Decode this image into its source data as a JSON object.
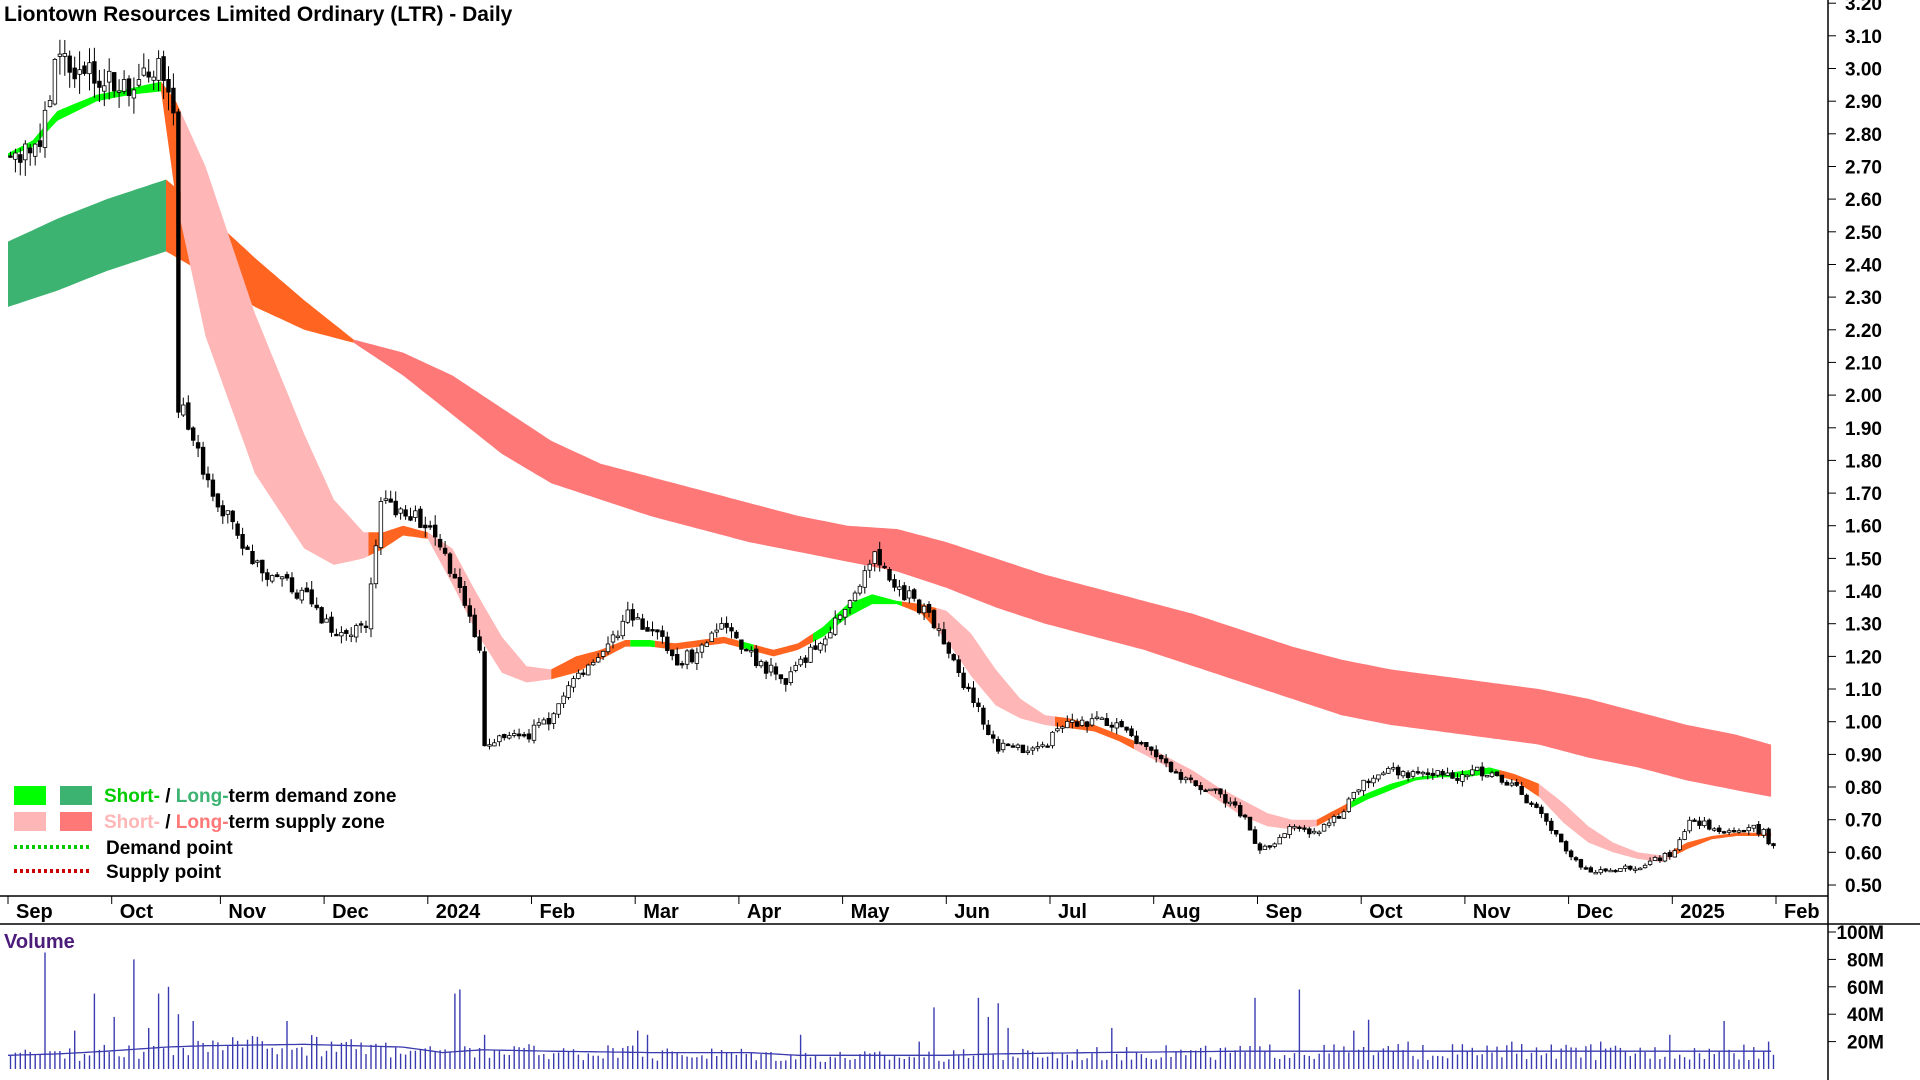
{
  "chart_data": {
    "type": "candlestick",
    "title": "Liontown Resources Limited Ordinary (LTR) - Daily",
    "price_axis": {
      "ylim": [
        0.45,
        3.2
      ],
      "ticks": [
        0.5,
        0.6,
        0.7,
        0.8,
        0.9,
        1.0,
        1.1,
        1.2,
        1.3,
        1.4,
        1.5,
        1.6,
        1.7,
        1.8,
        1.9,
        2.0,
        2.1,
        2.2,
        2.3,
        2.4,
        2.5,
        2.6,
        2.7,
        2.8,
        2.9,
        3.0,
        3.1,
        3.2
      ],
      "tick_labels": [
        "0.50",
        "0.60",
        "0.70",
        "0.80",
        "0.90",
        "1.00",
        "1.10",
        "1.20",
        "1.30",
        "1.40",
        "1.50",
        "1.60",
        "1.70",
        "1.80",
        "1.90",
        "2.00",
        "2.10",
        "2.20",
        "2.30",
        "2.40",
        "2.50",
        "2.60",
        "2.70",
        "2.80",
        "2.90",
        "3.00",
        "3.10",
        "3.20"
      ]
    },
    "x_axis": {
      "labels": [
        "Sep",
        "Oct",
        "Nov",
        "Dec",
        "2024",
        "Feb",
        "Mar",
        "Apr",
        "May",
        "Jun",
        "Jul",
        "Aug",
        "Sep",
        "Oct",
        "Nov",
        "Dec",
        "2025",
        "Feb"
      ],
      "label_index": [
        0,
        21,
        43,
        64,
        85,
        106,
        127,
        148,
        169,
        190,
        211,
        232,
        253,
        274,
        295,
        316,
        337,
        358
      ]
    },
    "price_path": [
      [
        0,
        2.74
      ],
      [
        5,
        2.75
      ],
      [
        10,
        3.04
      ],
      [
        18,
        2.98
      ],
      [
        25,
        2.93
      ],
      [
        31,
        2.99
      ],
      [
        33,
        2.82
      ],
      [
        34,
        1.98
      ],
      [
        40,
        1.72
      ],
      [
        50,
        1.48
      ],
      [
        60,
        1.38
      ],
      [
        66,
        1.26
      ],
      [
        72,
        1.3
      ],
      [
        75,
        1.66
      ],
      [
        80,
        1.65
      ],
      [
        85,
        1.58
      ],
      [
        90,
        1.43
      ],
      [
        95,
        1.22
      ],
      [
        96,
        0.94
      ],
      [
        104,
        0.95
      ],
      [
        110,
        1.02
      ],
      [
        115,
        1.15
      ],
      [
        120,
        1.23
      ],
      [
        125,
        1.32
      ],
      [
        130,
        1.28
      ],
      [
        135,
        1.18
      ],
      [
        140,
        1.22
      ],
      [
        145,
        1.3
      ],
      [
        150,
        1.2
      ],
      [
        157,
        1.12
      ],
      [
        162,
        1.21
      ],
      [
        167,
        1.3
      ],
      [
        172,
        1.42
      ],
      [
        175,
        1.5
      ],
      [
        178,
        1.43
      ],
      [
        182,
        1.38
      ],
      [
        186,
        1.32
      ],
      [
        190,
        1.21
      ],
      [
        195,
        1.06
      ],
      [
        200,
        0.92
      ],
      [
        205,
        0.92
      ],
      [
        210,
        0.94
      ],
      [
        215,
        1.0
      ],
      [
        220,
        1.0
      ],
      [
        225,
        0.98
      ],
      [
        230,
        0.92
      ],
      [
        235,
        0.85
      ],
      [
        240,
        0.8
      ],
      [
        245,
        0.78
      ],
      [
        250,
        0.7
      ],
      [
        253,
        0.6
      ],
      [
        256,
        0.63
      ],
      [
        260,
        0.68
      ],
      [
        265,
        0.66
      ],
      [
        270,
        0.73
      ],
      [
        274,
        0.82
      ],
      [
        278,
        0.85
      ],
      [
        283,
        0.84
      ],
      [
        288,
        0.85
      ],
      [
        292,
        0.83
      ],
      [
        297,
        0.85
      ],
      [
        301,
        0.84
      ],
      [
        306,
        0.78
      ],
      [
        311,
        0.69
      ],
      [
        316,
        0.58
      ],
      [
        321,
        0.54
      ],
      [
        326,
        0.55
      ],
      [
        330,
        0.56
      ],
      [
        334,
        0.58
      ],
      [
        337,
        0.6
      ],
      [
        340,
        0.7
      ],
      [
        344,
        0.68
      ],
      [
        348,
        0.67
      ],
      [
        352,
        0.68
      ],
      [
        355,
        0.66
      ],
      [
        357,
        0.61
      ]
    ],
    "short_term_zone": [
      [
        0,
        2.73,
        2.74
      ],
      [
        5,
        2.76,
        2.78
      ],
      [
        10,
        2.84,
        2.87
      ],
      [
        18,
        2.9,
        2.92
      ],
      [
        25,
        2.92,
        2.94
      ],
      [
        31,
        2.93,
        2.96
      ],
      [
        34,
        2.6,
        2.9
      ],
      [
        40,
        2.18,
        2.7
      ],
      [
        50,
        1.76,
        2.25
      ],
      [
        60,
        1.53,
        1.88
      ],
      [
        66,
        1.48,
        1.68
      ],
      [
        72,
        1.5,
        1.58
      ],
      [
        76,
        1.53,
        1.58
      ],
      [
        80,
        1.57,
        1.6
      ],
      [
        85,
        1.56,
        1.58
      ],
      [
        90,
        1.42,
        1.53
      ],
      [
        95,
        1.27,
        1.39
      ],
      [
        100,
        1.15,
        1.26
      ],
      [
        105,
        1.12,
        1.17
      ],
      [
        110,
        1.13,
        1.16
      ],
      [
        115,
        1.15,
        1.2
      ],
      [
        120,
        1.19,
        1.22
      ],
      [
        125,
        1.23,
        1.25
      ],
      [
        130,
        1.23,
        1.25
      ],
      [
        135,
        1.22,
        1.24
      ],
      [
        140,
        1.23,
        1.25
      ],
      [
        145,
        1.24,
        1.26
      ],
      [
        150,
        1.22,
        1.24
      ],
      [
        155,
        1.2,
        1.22
      ],
      [
        160,
        1.22,
        1.24
      ],
      [
        165,
        1.26,
        1.29
      ],
      [
        170,
        1.32,
        1.36
      ],
      [
        175,
        1.36,
        1.39
      ],
      [
        180,
        1.36,
        1.37
      ],
      [
        185,
        1.33,
        1.36
      ],
      [
        190,
        1.25,
        1.34
      ],
      [
        195,
        1.14,
        1.27
      ],
      [
        200,
        1.05,
        1.16
      ],
      [
        205,
        1.01,
        1.07
      ],
      [
        210,
        0.99,
        1.02
      ],
      [
        215,
        0.98,
        1.01
      ],
      [
        220,
        0.97,
        0.99
      ],
      [
        225,
        0.94,
        0.96
      ],
      [
        230,
        0.9,
        0.93
      ],
      [
        235,
        0.86,
        0.89
      ],
      [
        240,
        0.81,
        0.85
      ],
      [
        245,
        0.76,
        0.8
      ],
      [
        250,
        0.71,
        0.76
      ],
      [
        255,
        0.68,
        0.72
      ],
      [
        260,
        0.67,
        0.7
      ],
      [
        265,
        0.68,
        0.7
      ],
      [
        270,
        0.72,
        0.74
      ],
      [
        275,
        0.76,
        0.78
      ],
      [
        280,
        0.79,
        0.81
      ],
      [
        285,
        0.82,
        0.83
      ],
      [
        290,
        0.83,
        0.84
      ],
      [
        295,
        0.83,
        0.85
      ],
      [
        300,
        0.84,
        0.86
      ],
      [
        305,
        0.82,
        0.84
      ],
      [
        310,
        0.77,
        0.81
      ],
      [
        315,
        0.69,
        0.75
      ],
      [
        320,
        0.63,
        0.68
      ],
      [
        325,
        0.6,
        0.63
      ],
      [
        330,
        0.58,
        0.6
      ],
      [
        335,
        0.57,
        0.59
      ],
      [
        340,
        0.61,
        0.63
      ],
      [
        345,
        0.64,
        0.65
      ],
      [
        350,
        0.65,
        0.66
      ],
      [
        357,
        0.65,
        0.66
      ]
    ],
    "short_term_zone_segments": [
      {
        "from": 0,
        "to": 31,
        "zone": "short_demand"
      },
      {
        "from": 31,
        "to": 35,
        "zone": "long_supply_turn"
      },
      {
        "from": 35,
        "to": 73,
        "zone": "short_supply"
      },
      {
        "from": 73,
        "to": 85,
        "zone": "long_supply_turn"
      },
      {
        "from": 85,
        "to": 110,
        "zone": "short_supply"
      },
      {
        "from": 110,
        "to": 126,
        "zone": "long_supply_turn"
      },
      {
        "from": 126,
        "to": 131,
        "zone": "short_demand"
      },
      {
        "from": 131,
        "to": 148,
        "zone": "long_supply_turn"
      },
      {
        "from": 148,
        "to": 151,
        "zone": "short_demand"
      },
      {
        "from": 151,
        "to": 163,
        "zone": "long_supply_turn"
      },
      {
        "from": 163,
        "to": 181,
        "zone": "short_demand"
      },
      {
        "from": 181,
        "to": 188,
        "zone": "long_supply_turn"
      },
      {
        "from": 188,
        "to": 212,
        "zone": "short_supply"
      },
      {
        "from": 212,
        "to": 228,
        "zone": "long_supply_turn"
      },
      {
        "from": 228,
        "to": 265,
        "zone": "short_supply"
      },
      {
        "from": 265,
        "to": 272,
        "zone": "long_supply_turn"
      },
      {
        "from": 272,
        "to": 302,
        "zone": "short_demand"
      },
      {
        "from": 302,
        "to": 310,
        "zone": "long_supply_turn"
      },
      {
        "from": 310,
        "to": 337,
        "zone": "short_supply"
      },
      {
        "from": 337,
        "to": 357,
        "zone": "long_supply_turn"
      }
    ],
    "long_term_zone": [
      [
        0,
        2.27,
        2.47
      ],
      [
        10,
        2.32,
        2.54
      ],
      [
        20,
        2.38,
        2.6
      ],
      [
        32,
        2.44,
        2.66
      ],
      [
        40,
        2.37,
        2.56
      ],
      [
        50,
        2.27,
        2.42
      ],
      [
        60,
        2.2,
        2.29
      ],
      [
        70,
        2.16,
        2.17
      ],
      [
        80,
        2.06,
        2.13
      ],
      [
        90,
        1.94,
        2.06
      ],
      [
        100,
        1.82,
        1.96
      ],
      [
        110,
        1.73,
        1.86
      ],
      [
        120,
        1.68,
        1.79
      ],
      [
        130,
        1.63,
        1.75
      ],
      [
        140,
        1.59,
        1.71
      ],
      [
        150,
        1.55,
        1.67
      ],
      [
        160,
        1.52,
        1.63
      ],
      [
        170,
        1.49,
        1.6
      ],
      [
        180,
        1.46,
        1.59
      ],
      [
        190,
        1.41,
        1.55
      ],
      [
        200,
        1.35,
        1.5
      ],
      [
        210,
        1.3,
        1.45
      ],
      [
        220,
        1.26,
        1.41
      ],
      [
        230,
        1.22,
        1.37
      ],
      [
        240,
        1.17,
        1.33
      ],
      [
        250,
        1.12,
        1.28
      ],
      [
        260,
        1.07,
        1.23
      ],
      [
        270,
        1.02,
        1.19
      ],
      [
        280,
        0.99,
        1.16
      ],
      [
        290,
        0.97,
        1.14
      ],
      [
        300,
        0.95,
        1.12
      ],
      [
        310,
        0.93,
        1.1
      ],
      [
        320,
        0.89,
        1.07
      ],
      [
        330,
        0.86,
        1.03
      ],
      [
        340,
        0.82,
        0.99
      ],
      [
        350,
        0.79,
        0.96
      ],
      [
        357,
        0.77,
        0.93
      ]
    ],
    "long_term_zone_segments": [
      {
        "from": 0,
        "to": 32,
        "zone": "long_demand"
      },
      {
        "from": 32,
        "to": 70,
        "zone": "long_supply_turn"
      },
      {
        "from": 70,
        "to": 357,
        "zone": "long_supply"
      }
    ],
    "volume": {
      "ylim": [
        0,
        100
      ],
      "unit": "M",
      "ticks": [
        20,
        40,
        60,
        80,
        100
      ],
      "tick_labels": [
        "20M",
        "40M",
        "60M",
        "80M",
        "100M"
      ],
      "title": "Volume",
      "spikes": [
        [
          7,
          85
        ],
        [
          13,
          28
        ],
        [
          17,
          55
        ],
        [
          21,
          38
        ],
        [
          25,
          80
        ],
        [
          28,
          30
        ],
        [
          30,
          55
        ],
        [
          32,
          60
        ],
        [
          34,
          40
        ],
        [
          37,
          35
        ],
        [
          56,
          35
        ],
        [
          65,
          20
        ],
        [
          90,
          55
        ],
        [
          91,
          58
        ],
        [
          96,
          25
        ],
        [
          127,
          28
        ],
        [
          129,
          25
        ],
        [
          160,
          25
        ],
        [
          184,
          20
        ],
        [
          187,
          45
        ],
        [
          196,
          52
        ],
        [
          198,
          38
        ],
        [
          200,
          48
        ],
        [
          202,
          30
        ],
        [
          223,
          30
        ],
        [
          252,
          52
        ],
        [
          261,
          58
        ],
        [
          272,
          28
        ],
        [
          275,
          36
        ],
        [
          283,
          20
        ],
        [
          304,
          20
        ],
        [
          322,
          20
        ],
        [
          336,
          25
        ],
        [
          347,
          35
        ],
        [
          356,
          20
        ]
      ],
      "average": [
        [
          0,
          10
        ],
        [
          10,
          11
        ],
        [
          20,
          13
        ],
        [
          32,
          16
        ],
        [
          40,
          17
        ],
        [
          60,
          18
        ],
        [
          70,
          17
        ],
        [
          80,
          16
        ],
        [
          88,
          12
        ],
        [
          96,
          14
        ],
        [
          110,
          13
        ],
        [
          130,
          12
        ],
        [
          150,
          12
        ],
        [
          160,
          10
        ],
        [
          175,
          10
        ],
        [
          190,
          10
        ],
        [
          200,
          11
        ],
        [
          220,
          12
        ],
        [
          250,
          13
        ],
        [
          270,
          13
        ],
        [
          290,
          13
        ],
        [
          310,
          13
        ],
        [
          330,
          13
        ],
        [
          357,
          13
        ]
      ]
    },
    "legend": {
      "items": [
        {
          "swatches": [
            "#00ff00",
            "#3cb371"
          ],
          "parts": [
            {
              "text": "Short-",
              "color": "#00cc00"
            },
            {
              "text": " / ",
              "color": "#000000"
            },
            {
              "text": "Long-",
              "color": "#3cb371"
            },
            {
              "text": "term demand zone",
              "color": "#000000"
            }
          ]
        },
        {
          "swatches": [
            "#ffb6b6",
            "#ff7878"
          ],
          "parts": [
            {
              "text": "Short-",
              "color": "#ffb6b6"
            },
            {
              "text": " / ",
              "color": "#000000"
            },
            {
              "text": "Long-",
              "color": "#ff7878"
            },
            {
              "text": "term supply zone",
              "color": "#000000"
            }
          ]
        },
        {
          "dotted": "#00cc00",
          "parts": [
            {
              "text": "Demand point",
              "color": "#000000"
            }
          ]
        },
        {
          "dotted": "#cc0000",
          "parts": [
            {
              "text": "Supply point",
              "color": "#000000"
            }
          ]
        }
      ]
    },
    "colors": {
      "short_demand": "#00ff00",
      "long_demand": "#3cb371",
      "short_supply": "#ffb6b6",
      "long_supply": "#ff7878",
      "supply_turn": "#ff6420",
      "candle": "#000000",
      "volume_bar": "#3b3bb0",
      "volume_avg": "#3b3bb0",
      "volume_title": "#4b1c7a"
    }
  }
}
